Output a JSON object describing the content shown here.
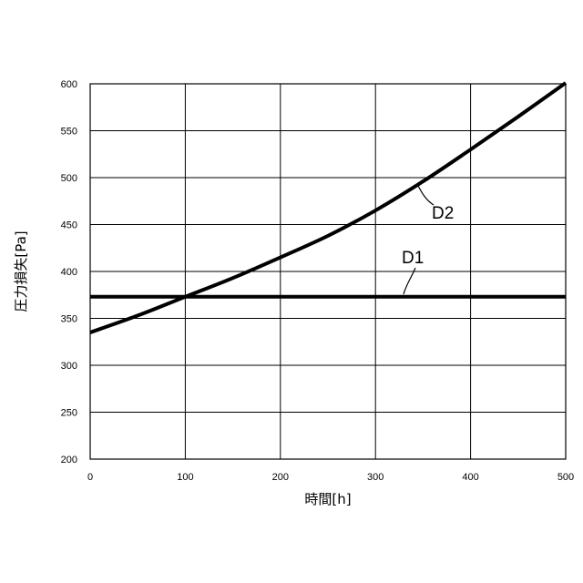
{
  "chart_data": {
    "type": "line",
    "xlabel": "時間[h]",
    "ylabel": "圧力損失[Pa]",
    "xlim": [
      0,
      500
    ],
    "ylim": [
      200,
      600
    ],
    "xticks": [
      0,
      100,
      200,
      300,
      400,
      500
    ],
    "yticks": [
      200,
      250,
      300,
      350,
      400,
      450,
      500,
      550,
      600
    ],
    "grid": true,
    "series": [
      {
        "name": "D1",
        "x": [
          0,
          100,
          200,
          300,
          400,
          500
        ],
        "y": [
          373,
          373,
          373,
          373,
          373,
          373
        ]
      },
      {
        "name": "D2",
        "x": [
          0,
          50,
          100,
          150,
          200,
          250,
          300,
          350,
          400,
          450,
          500
        ],
        "y": [
          335,
          353,
          373,
          393,
          415,
          438,
          465,
          496,
          530,
          565,
          601
        ]
      }
    ]
  }
}
